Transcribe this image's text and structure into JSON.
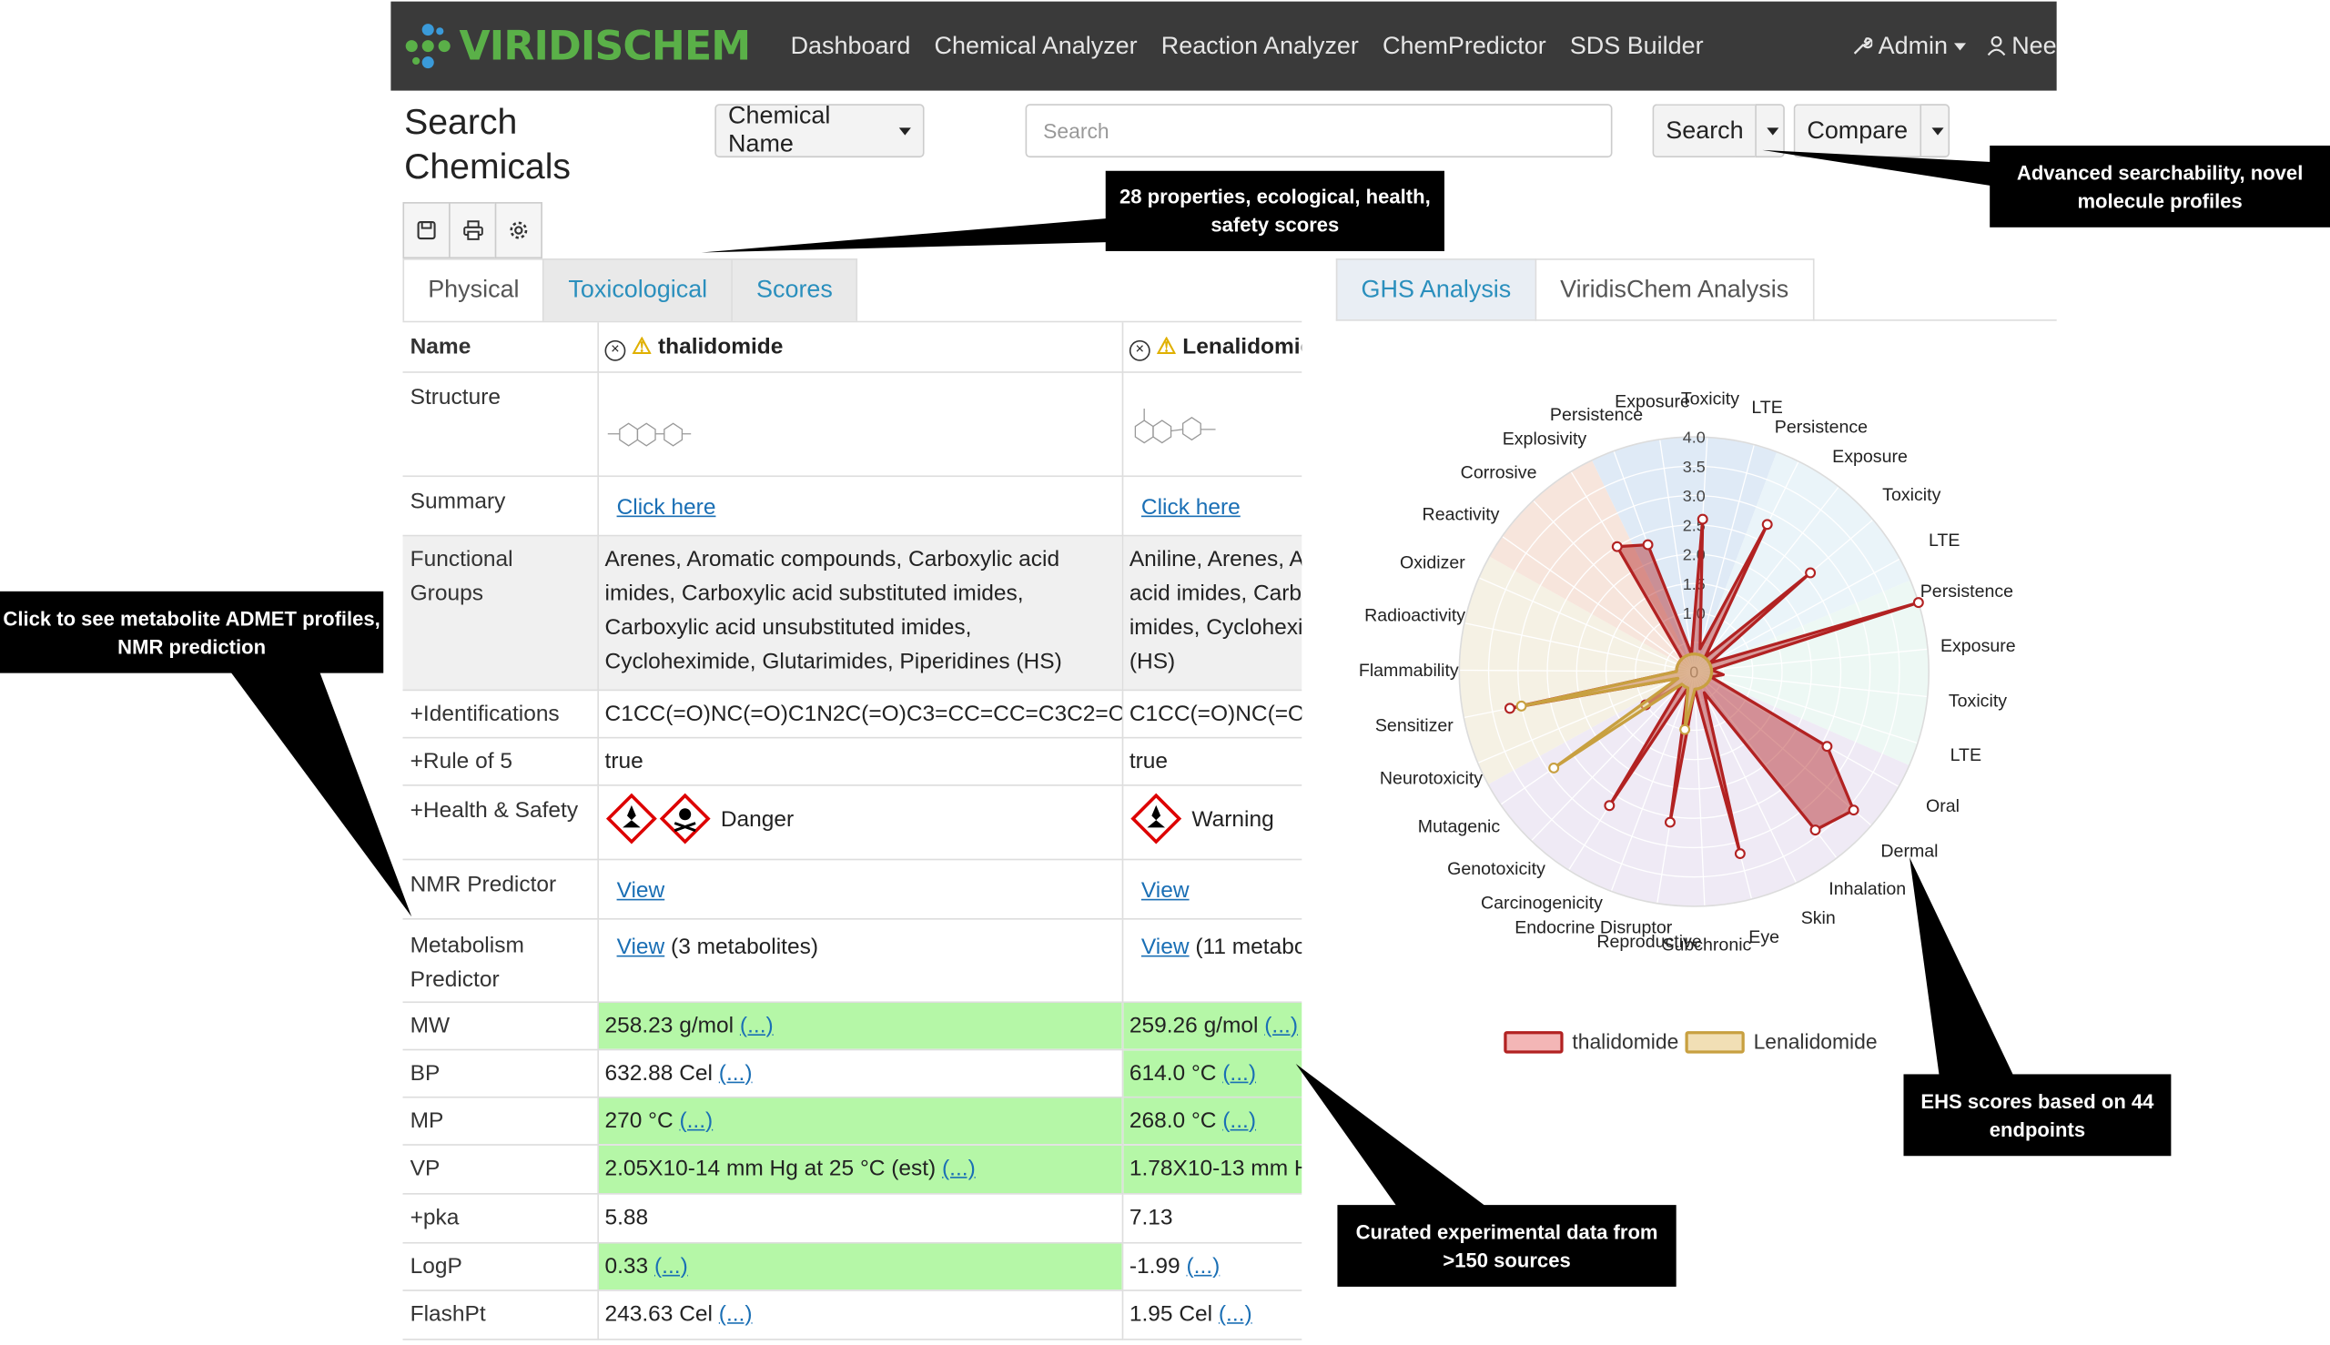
{
  "nav": {
    "brand": "VIRIDISCHEM",
    "links": [
      "Dashboard",
      "Chemical Analyzer",
      "Reaction Analyzer",
      "ChemPredictor",
      "SDS Builder"
    ],
    "admin": "Admin",
    "user": "Nee"
  },
  "search": {
    "title": "Search Chemicals",
    "type_select": "Chemical Name",
    "placeholder": "Search",
    "search_button": "Search",
    "compare_button": "Compare"
  },
  "tabs_left": [
    "Physical",
    "Toxicological",
    "Scores"
  ],
  "tabs_right": [
    "GHS Analysis",
    "ViridisChem Analysis"
  ],
  "table": {
    "header_label": "Name",
    "compounds": [
      "thalidomide",
      "Lenalidomide"
    ],
    "rows": {
      "structure": "Structure",
      "summary": {
        "label": "Summary",
        "c1": "Click here",
        "c2": "Click here"
      },
      "functional": {
        "label": "Functional Groups",
        "c1": [
          "Arenes, Aromatic compounds, Carboxylic acid",
          "imides, Carboxylic acid substituted imides,",
          "Carboxylic acid unsubstituted imides,",
          "Cycloheximide, Glutarimides, Piperidines (HS)"
        ],
        "c2": [
          "Aniline, Arenes, A",
          "acid imides, Carb",
          "imides, Cyclohexi",
          "(HS)"
        ]
      },
      "identifications": {
        "label": "+Identifications",
        "c1": "C1CC(=O)NC(=O)C1N2C(=O)C3=CC=CC=C3C2=O",
        "c2": "C1CC(=O)NC(=O)"
      },
      "rule5": {
        "label": "+Rule of 5",
        "c1": "true",
        "c2": "true"
      },
      "health": {
        "label": "+Health & Safety",
        "c1": "Danger",
        "c2": "Warning"
      },
      "nmr": {
        "label": "NMR Predictor",
        "c1": "View",
        "c2": "View"
      },
      "metab": {
        "label": "Metabolism Predictor",
        "c1_link": "View",
        "c1_note": "(3 metabolites)",
        "c2_link": "View",
        "c2_note": "(11 metabo"
      },
      "mw": {
        "label": "MW",
        "c1": "258.23 g/mol",
        "c2": "259.26 g/mol"
      },
      "bp": {
        "label": "BP",
        "c1": "632.88 Cel",
        "c2": "614.0 °C"
      },
      "mp": {
        "label": "MP",
        "c1": "270 °C",
        "c2": "268.0 °C"
      },
      "vp": {
        "label": "VP",
        "c1": "2.05X10-14 mm Hg at 25 °C (est)",
        "c2": "1.78X10-13 mm Hg"
      },
      "pka": {
        "label": "+pka",
        "c1": "5.88",
        "c2": "7.13"
      },
      "logp": {
        "label": "LogP",
        "c1": "0.33",
        "c2": "-1.99"
      },
      "flash": {
        "label": "FlashPt",
        "c1": "243.63 Cel",
        "c2": "1.95 Cel"
      },
      "ref": "(...)"
    }
  },
  "callouts": {
    "properties": "28 properties, ecological, health, safety scores",
    "search": "Advanced searchability, novel molecule profiles",
    "metabolite": "Click to see metabolite ADMET profiles, NMR prediction",
    "curated": "Curated experimental data from >150 sources",
    "ehs": "EHS scores based on 44 endpoints"
  },
  "chart_data": {
    "type": "radar",
    "rticks": [
      "0",
      "1.0",
      "1.5",
      "2.0",
      "2.5",
      "3.0",
      "3.5",
      "4.0"
    ],
    "rmax": 4.0,
    "categories": [
      "Persistence",
      "Exposure",
      "Toxicity",
      "LTE",
      "Persistence",
      "Exposure",
      "Toxicity",
      "LTE",
      "Persistence",
      "Exposure",
      "Toxicity",
      "LTE",
      "Oral",
      "Dermal",
      "Inhalation",
      "Skin",
      "Eye",
      "Subchronic",
      "Reproductive",
      "Endocrine Disruptor",
      "Carcinogenicity",
      "Genotoxicity",
      "Mutagenic",
      "Neurotoxicity",
      "Sensitizer",
      "Flammability",
      "Radioactivity",
      "Oxidizer",
      "Reactivity",
      "Corrosive",
      "Explosivity"
    ],
    "category_colors": [
      "#d9e6f5",
      "#e6f2f8",
      "#eaf7f2",
      "#ece6f3",
      "#f3eedf",
      "#f6e0d6"
    ],
    "series": [
      {
        "name": "thalidomide",
        "color": "#b22222",
        "fill": "rgba(178,34,34,0.45)",
        "values": [
          2.3,
          0.3,
          2.6,
          0.4,
          2.8,
          0.3,
          2.6,
          0.3,
          4.0,
          0.3,
          0.5,
          0.3,
          2.6,
          3.6,
          3.4,
          0.4,
          3.2,
          0.3,
          2.6,
          0.3,
          2.7,
          0.3,
          1.0,
          0.3,
          3.2,
          0.3,
          0.3,
          0.3,
          0.3,
          0.3,
          2.5
        ]
      },
      {
        "name": "Lenalidomide",
        "color": "#c8a040",
        "fill": "rgba(222,200,140,0.55)",
        "values": [
          0.3,
          0.3,
          0.3,
          0.3,
          0.3,
          0.3,
          0.3,
          0.3,
          0.3,
          0.3,
          0.3,
          0.3,
          0.3,
          0.3,
          0.3,
          0.3,
          0.3,
          0.3,
          1.0,
          0.3,
          0.3,
          0.3,
          2.9,
          0.3,
          3.0,
          0.3,
          0.3,
          0.3,
          0.3,
          0.3,
          0.3
        ]
      }
    ]
  }
}
